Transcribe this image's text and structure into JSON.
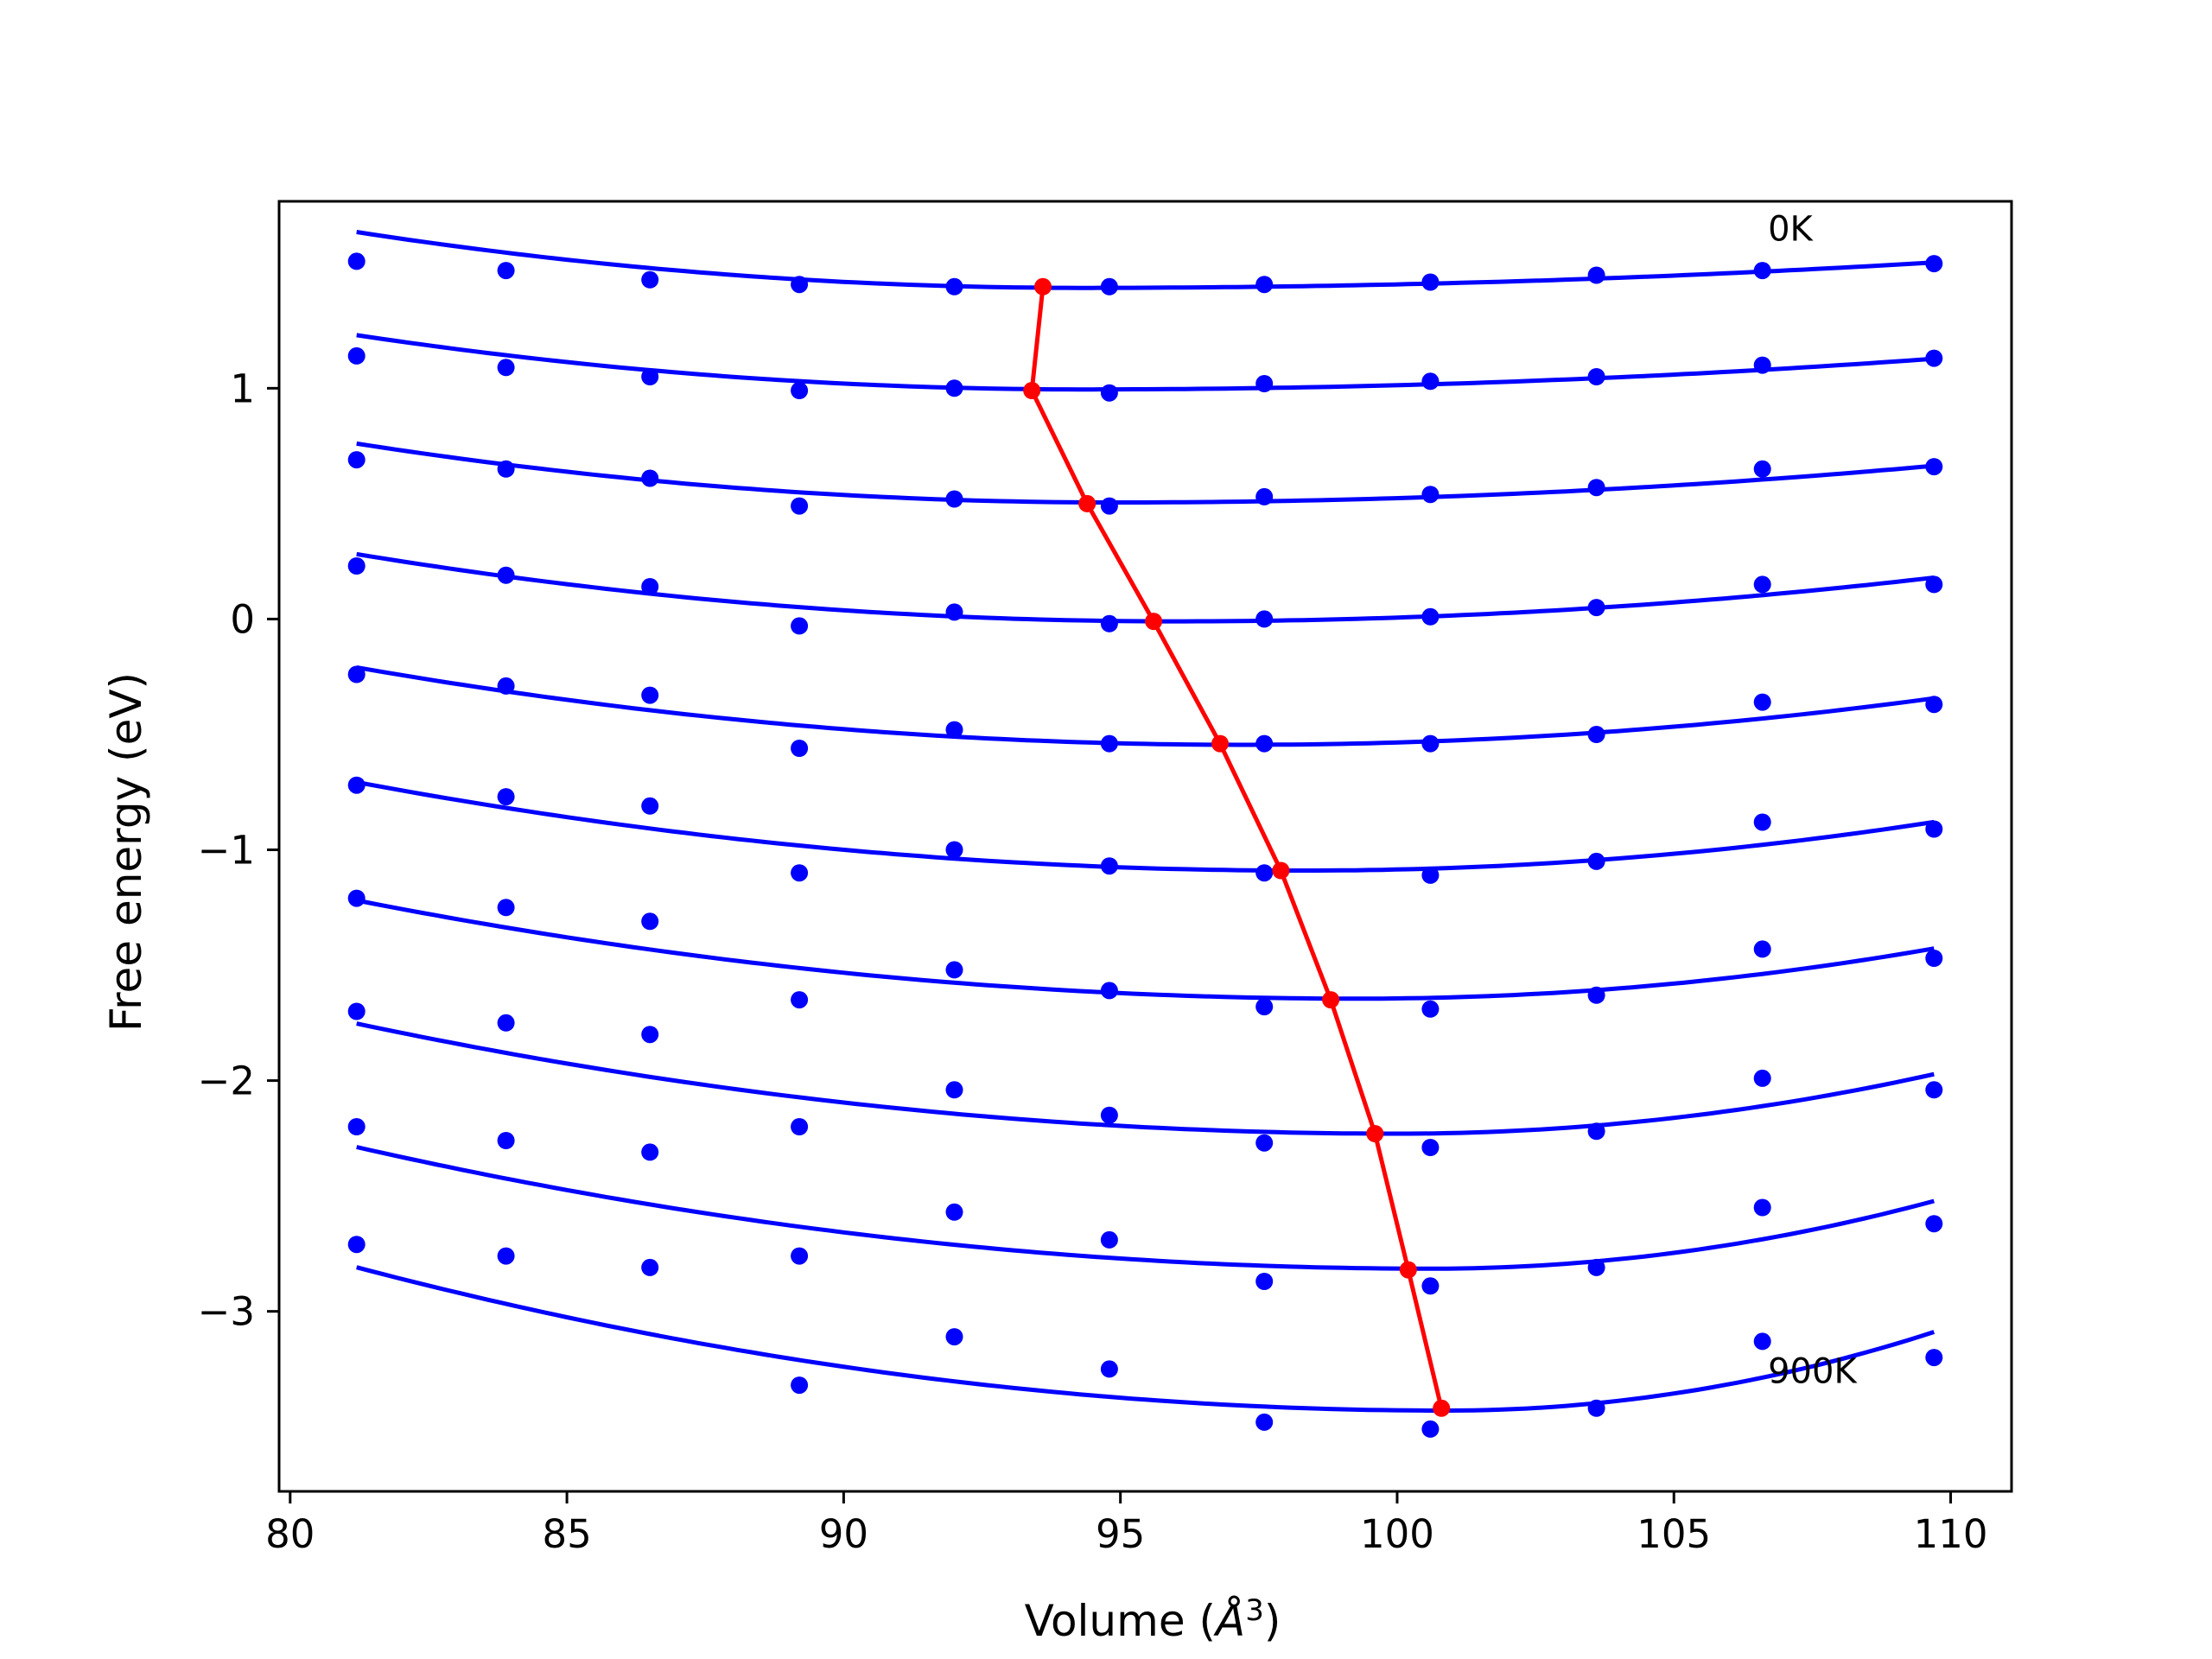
{
  "chart_data": {
    "type": "line",
    "title": "",
    "xlabel": "Volume (Å³)",
    "xlabel_parts": {
      "text": "Volume (",
      "unit": "Å",
      "exp": "3",
      "close": ")"
    },
    "ylabel": "Free energy (eV)",
    "xlim": [
      79.8,
      111.1
    ],
    "ylim": [
      -3.78,
      1.81
    ],
    "xticks": [
      80,
      85,
      90,
      95,
      100,
      105,
      110
    ],
    "yticks": [
      1,
      0,
      -1,
      -2,
      -3
    ],
    "xtick_labels": [
      "80",
      "85",
      "90",
      "95",
      "100",
      "105",
      "110"
    ],
    "ytick_labels": [
      "1",
      "0",
      "−1",
      "−2",
      "−3"
    ],
    "grid": false,
    "legend": "none",
    "colors": {
      "fit": "#0000ff",
      "points": "#0000ff",
      "minima": "#ff0000",
      "axes": "#000000"
    },
    "volumes": [
      81.2,
      83.9,
      86.5,
      89.2,
      92.0,
      94.8,
      97.6,
      100.6,
      103.6,
      106.6,
      109.7
    ],
    "series": [
      {
        "label": "0K",
        "values": [
          1.55,
          1.51,
          1.47,
          1.45,
          1.44,
          1.44,
          1.45,
          1.46,
          1.49,
          1.51,
          1.54
        ],
        "fit": {
          "x0": 94.3,
          "e0": 1.435,
          "k_left": 0.00141,
          "k_right": 0.000465
        }
      },
      {
        "values": [
          1.14,
          1.09,
          1.05,
          0.99,
          1.0,
          0.98,
          1.02,
          1.03,
          1.05,
          1.1,
          1.13
        ],
        "fit": {
          "x0": 94.3,
          "e0": 0.995,
          "k_left": 0.00137,
          "k_right": 0.00056
        }
      },
      {
        "values": [
          0.69,
          0.65,
          0.61,
          0.49,
          0.52,
          0.49,
          0.53,
          0.54,
          0.57,
          0.65,
          0.66
        ],
        "fit": {
          "x0": 94.9,
          "e0": 0.505,
          "k_left": 0.00136,
          "k_right": 0.000726
        }
      },
      {
        "values": [
          0.23,
          0.19,
          0.14,
          -0.03,
          0.03,
          -0.02,
          0.0,
          0.01,
          0.05,
          0.15,
          0.15
        ],
        "fit": {
          "x0": 96.0,
          "e0": -0.01,
          "k_left": 0.00133,
          "k_right": 0.00101
        }
      },
      {
        "values": [
          -0.24,
          -0.29,
          -0.33,
          -0.56,
          -0.48,
          -0.54,
          -0.54,
          -0.54,
          -0.5,
          -0.36,
          -0.37
        ],
        "fit": {
          "x0": 97.2,
          "e0": -0.545,
          "k_left": 0.00131,
          "k_right": 0.00129
        }
      },
      {
        "values": [
          -0.72,
          -0.77,
          -0.81,
          -1.1,
          -1.0,
          -1.07,
          -1.1,
          -1.11,
          -1.05,
          -0.88,
          -0.91
        ],
        "fit": {
          "x0": 98.3,
          "e0": -1.09,
          "k_left": 0.00131,
          "k_right": 0.00162
        }
      },
      {
        "values": [
          -1.21,
          -1.25,
          -1.31,
          -1.65,
          -1.52,
          -1.61,
          -1.68,
          -1.69,
          -1.63,
          -1.43,
          -1.47
        ],
        "fit": {
          "x0": 99.3,
          "e0": -1.645,
          "k_left": 0.0013,
          "k_right": 0.00201
        }
      },
      {
        "values": [
          -1.7,
          -1.75,
          -1.8,
          -2.2,
          -2.04,
          -2.15,
          -2.27,
          -2.29,
          -2.22,
          -1.99,
          -2.04
        ],
        "fit": {
          "x0": 100.0,
          "e0": -2.23,
          "k_left": 0.00135,
          "k_right": 0.00274
        }
      },
      {
        "values": [
          -2.2,
          -2.26,
          -2.31,
          -2.76,
          -2.57,
          -2.69,
          -2.87,
          -2.89,
          -2.81,
          -2.55,
          -2.62
        ],
        "fit": {
          "x0": 100.6,
          "e0": -2.815,
          "k_left": 0.0014,
          "k_right": 0.00354
        }
      },
      {
        "label": "900K",
        "values": [
          -2.71,
          -2.76,
          -2.81,
          -3.32,
          -3.11,
          -3.25,
          -3.48,
          -3.51,
          -3.42,
          -3.13,
          -3.2
        ],
        "fit": {
          "x0": 100.9,
          "e0": -3.43,
          "k_left": 0.0016,
          "k_right": 0.0044
        }
      }
    ],
    "minima_path": {
      "x": [
        93.6,
        93.4,
        94.4,
        95.6,
        96.8,
        97.9,
        98.8,
        99.6,
        100.2,
        100.8
      ],
      "y": [
        1.44,
        0.99,
        0.5,
        -0.01,
        -0.54,
        -1.09,
        -1.65,
        -2.23,
        -2.82,
        -3.42
      ]
    },
    "annotations": [
      {
        "text": "0K",
        "x": 106.7,
        "y": 1.64
      },
      {
        "text": "900K",
        "x": 106.7,
        "y": -3.31
      }
    ]
  }
}
